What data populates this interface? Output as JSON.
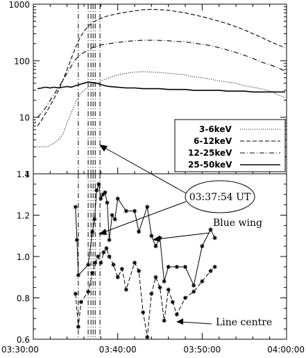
{
  "chart_data": [
    {
      "panel": "top",
      "type": "line",
      "title": "",
      "xlabel": "",
      "ylabel": "",
      "y_scale": "log",
      "xlim": [
        "03:30:00",
        "04:00:00"
      ],
      "ylim": [
        1,
        1000
      ],
      "y_tick_labels": [
        "1",
        "10",
        "100",
        "1000"
      ],
      "legend_position": "lower-right",
      "series": [
        {
          "name": "3-6keV",
          "style": "dotted",
          "x": [
            "03:30:30",
            "03:31:00",
            "03:31:30",
            "03:32:00",
            "03:32:30",
            "03:33:00",
            "03:33:30",
            "03:34:00",
            "03:34:30",
            "03:35:00",
            "03:35:30",
            "03:36:00",
            "03:36:30",
            "03:37:00",
            "03:37:30",
            "03:38:00",
            "03:38:30",
            "03:39:00",
            "03:40:00",
            "03:41:00",
            "03:42:00",
            "03:43:00",
            "03:44:00",
            "03:45:00",
            "03:46:00",
            "03:47:00",
            "03:48:00",
            "03:49:00",
            "03:50:00",
            "03:51:00",
            "03:52:00",
            "03:53:00",
            "03:54:00",
            "03:55:00",
            "03:56:00",
            "03:57:00",
            "03:58:00",
            "03:59:00",
            "03:59:50"
          ],
          "values": [
            3,
            3,
            3,
            3.2,
            3.5,
            4,
            5,
            8,
            12,
            18,
            25,
            30,
            34,
            37,
            40,
            44,
            47,
            50,
            56,
            60,
            63,
            64,
            63,
            62,
            60,
            58,
            56,
            52,
            50,
            47,
            44,
            42,
            40,
            36,
            34,
            32,
            29,
            25,
            22
          ]
        },
        {
          "name": "6-12keV",
          "style": "dashed",
          "x": [
            "03:30:30",
            "03:31:00",
            "03:31:30",
            "03:32:00",
            "03:32:30",
            "03:33:00",
            "03:33:30",
            "03:34:00",
            "03:34:30",
            "03:35:00",
            "03:35:30",
            "03:36:00",
            "03:36:30",
            "03:37:00",
            "03:37:30",
            "03:38:00",
            "03:38:30",
            "03:39:00",
            "03:40:00",
            "03:41:00",
            "03:42:00",
            "03:43:00",
            "03:44:00",
            "03:45:00",
            "03:46:00",
            "03:47:00",
            "03:48:00",
            "03:49:00",
            "03:50:00",
            "03:51:00",
            "03:52:00",
            "03:53:00",
            "03:54:00",
            "03:55:00",
            "03:56:00",
            "03:57:00",
            "03:58:00",
            "03:59:00",
            "03:59:50"
          ],
          "values": [
            7,
            9,
            12,
            16,
            22,
            30,
            45,
            70,
            110,
            170,
            250,
            330,
            410,
            470,
            520,
            560,
            600,
            630,
            680,
            720,
            760,
            800,
            810,
            800,
            780,
            740,
            700,
            650,
            600,
            550,
            500,
            450,
            400,
            350,
            300,
            260,
            220,
            190,
            170
          ]
        },
        {
          "name": "12-25keV",
          "style": "dash-dot",
          "x": [
            "03:30:30",
            "03:31:00",
            "03:31:30",
            "03:32:00",
            "03:32:30",
            "03:33:00",
            "03:33:30",
            "03:34:00",
            "03:34:30",
            "03:35:00",
            "03:35:30",
            "03:36:00",
            "03:36:30",
            "03:37:00",
            "03:37:30",
            "03:38:00",
            "03:38:30",
            "03:39:00",
            "03:40:00",
            "03:41:00",
            "03:42:00",
            "03:43:00",
            "03:44:00",
            "03:45:00",
            "03:46:00",
            "03:47:00",
            "03:48:00",
            "03:49:00",
            "03:50:00",
            "03:51:00",
            "03:52:00",
            "03:53:00",
            "03:54:00",
            "03:55:00",
            "03:56:00",
            "03:57:00",
            "03:58:00",
            "03:59:00",
            "03:59:50"
          ],
          "values": [
            10,
            12,
            15,
            20,
            26,
            34,
            45,
            60,
            80,
            105,
            125,
            140,
            155,
            170,
            180,
            190,
            195,
            200,
            210,
            220,
            225,
            230,
            230,
            228,
            225,
            220,
            215,
            205,
            195,
            185,
            170,
            155,
            140,
            125,
            110,
            95,
            85,
            75,
            65
          ]
        },
        {
          "name": "25-50keV",
          "style": "solid",
          "x": [
            "03:30:30",
            "03:31:00",
            "03:31:30",
            "03:32:00",
            "03:32:30",
            "03:33:00",
            "03:33:30",
            "03:34:00",
            "03:34:30",
            "03:35:00",
            "03:35:30",
            "03:36:00",
            "03:36:30",
            "03:37:00",
            "03:37:30",
            "03:38:00",
            "03:38:30",
            "03:39:00",
            "03:40:00",
            "03:41:00",
            "03:42:00",
            "03:43:00",
            "03:44:00",
            "03:45:00",
            "03:46:00",
            "03:47:00",
            "03:48:00",
            "03:49:00",
            "03:50:00",
            "03:51:00",
            "03:52:00",
            "03:53:00",
            "03:54:00",
            "03:55:00",
            "03:56:00",
            "03:57:00",
            "03:58:00",
            "03:59:00",
            "03:59:50"
          ],
          "values": [
            32,
            33,
            34,
            33,
            34,
            33,
            34,
            35,
            34,
            36,
            38,
            40,
            42,
            41,
            40,
            38,
            36,
            35,
            34,
            33,
            33,
            32,
            32,
            32,
            31,
            31,
            31,
            30,
            30,
            30,
            30,
            29,
            29,
            29,
            28,
            28,
            28,
            28,
            28
          ]
        }
      ],
      "vertical_lines": [
        "03:35:20",
        "03:36:30",
        "03:36:50",
        "03:37:05",
        "03:37:20",
        "03:37:54"
      ]
    },
    {
      "panel": "bottom",
      "type": "line",
      "title": "",
      "xlabel": "",
      "ylabel": "",
      "xlim": [
        "03:30:00",
        "04:00:00"
      ],
      "ylim": [
        0.6,
        1.4
      ],
      "x_tick_labels": [
        "03:30:00",
        "03:40:00",
        "03:50:00",
        "04:00:00"
      ],
      "y_tick_labels": [
        "0.6",
        "0.8",
        "1.0",
        "1.2",
        "1.4"
      ],
      "series": [
        {
          "name": "Blue wing",
          "style": "solid",
          "marker": "asterisk",
          "x": [
            "03:35:00",
            "03:35:10",
            "03:35:20",
            "03:36:30",
            "03:37:00",
            "03:37:15",
            "03:37:30",
            "03:37:45",
            "03:38:00",
            "03:38:15",
            "03:38:30",
            "03:38:45",
            "03:39:00",
            "03:39:20",
            "03:39:40",
            "03:40:00",
            "03:41:00",
            "03:42:00",
            "03:42:30",
            "03:43:30",
            "03:44:00",
            "03:44:30",
            "03:45:00",
            "03:45:30",
            "03:46:00",
            "03:47:00",
            "03:48:00",
            "03:49:00",
            "03:50:00",
            "03:51:00",
            "03:51:30"
          ],
          "values": [
            1.24,
            1.08,
            0.91,
            0.96,
            1.12,
            1.18,
            1.32,
            1.35,
            1.28,
            1.3,
            1.31,
            1.26,
            1.08,
            1.2,
            1.18,
            1.28,
            1.22,
            1.22,
            1.12,
            1.24,
            1.1,
            1.05,
            1.09,
            0.88,
            0.95,
            0.95,
            0.95,
            0.86,
            1.05,
            1.13,
            1.09
          ]
        },
        {
          "name": "Line centre",
          "style": "dashed",
          "marker": "asterisk",
          "x": [
            "03:35:00",
            "03:35:20",
            "03:35:40",
            "03:36:30",
            "03:37:00",
            "03:37:20",
            "03:37:40",
            "03:38:00",
            "03:38:20",
            "03:38:40",
            "03:39:00",
            "03:39:30",
            "03:40:00",
            "03:40:30",
            "03:41:00",
            "03:42:00",
            "03:42:30",
            "03:43:00",
            "03:43:30",
            "03:44:00",
            "03:44:30",
            "03:45:00",
            "03:45:30",
            "03:46:00",
            "03:46:30",
            "03:47:00",
            "03:48:00",
            "03:49:00",
            "03:50:00",
            "03:51:00",
            "03:51:30"
          ],
          "values": [
            0.82,
            0.66,
            0.78,
            0.83,
            0.92,
            0.97,
            1.0,
            0.97,
            1.02,
            1.04,
            1.0,
            0.96,
            0.9,
            0.94,
            0.84,
            0.97,
            0.93,
            0.73,
            0.61,
            0.82,
            0.9,
            0.85,
            0.69,
            0.84,
            0.78,
            0.72,
            0.8,
            0.83,
            0.88,
            0.93,
            0.95
          ]
        }
      ],
      "vertical_lines": [
        "03:35:20",
        "03:36:30",
        "03:36:50",
        "03:37:05",
        "03:37:20",
        "03:37:54"
      ]
    }
  ],
  "legend": {
    "entries": [
      "3-6keV",
      "6-12keV",
      "12-25keV",
      "25-50keV"
    ]
  },
  "annotations": {
    "time_label": "03:37:54 UT",
    "blue_wing_label": "Blue wing",
    "line_centre_label": "Line centre"
  }
}
